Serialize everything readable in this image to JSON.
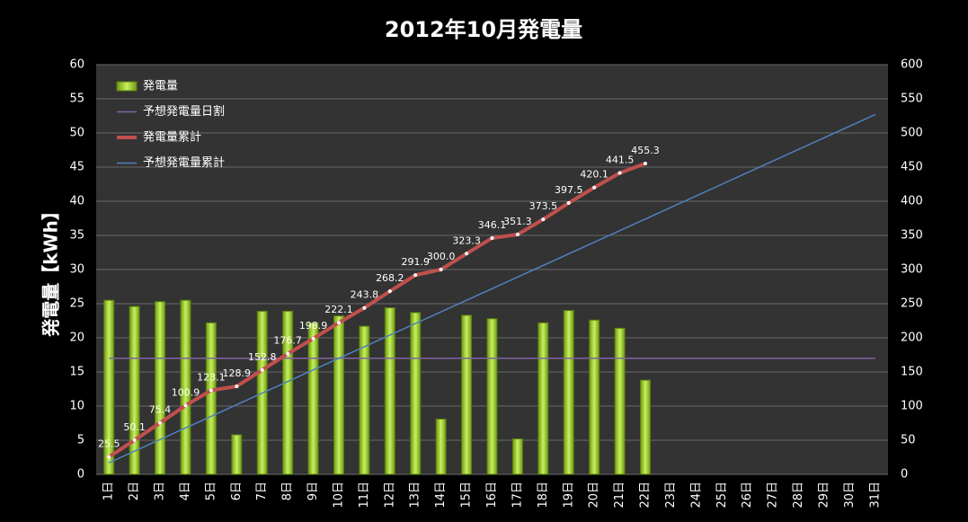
{
  "chart_data": {
    "type": "bar",
    "title": "2012年10月発電量",
    "y_label": "発電量【kWh】",
    "categories": [
      "1日",
      "2日",
      "3日",
      "4日",
      "5日",
      "6日",
      "7日",
      "8日",
      "9日",
      "10日",
      "11日",
      "12日",
      "13日",
      "14日",
      "15日",
      "16日",
      "17日",
      "18日",
      "19日",
      "20日",
      "21日",
      "22日",
      "23日",
      "24日",
      "25日",
      "26日",
      "27日",
      "28日",
      "29日",
      "30日",
      "31日"
    ],
    "series": [
      {
        "name": "発電量",
        "type": "bar",
        "color": "#9bd32a",
        "axis": "y",
        "values": [
          25.5,
          24.6,
          25.3,
          25.5,
          22.2,
          5.8,
          23.9,
          23.9,
          22.2,
          23.2,
          21.7,
          24.4,
          23.7,
          8.1,
          23.3,
          22.8,
          5.2,
          22.2,
          24.0,
          22.6,
          21.4,
          13.8,
          null,
          null,
          null,
          null,
          null,
          null,
          null,
          null,
          null
        ]
      },
      {
        "name": "予想発電量日割",
        "type": "line",
        "color": "#8064a2",
        "axis": "y",
        "values": [
          17,
          17,
          17,
          17,
          17,
          17,
          17,
          17,
          17,
          17,
          17,
          17,
          17,
          17,
          17,
          17,
          17,
          17,
          17,
          17,
          17,
          17,
          17,
          17,
          17,
          17,
          17,
          17,
          17,
          17,
          17
        ]
      },
      {
        "name": "発電量累計",
        "type": "line",
        "color": "#c0504d",
        "axis": "y2",
        "markers": true,
        "values": [
          25.5,
          50.1,
          75.4,
          100.9,
          123.1,
          128.9,
          152.8,
          176.7,
          198.9,
          222.1,
          243.8,
          268.2,
          291.9,
          300.0,
          323.3,
          346.1,
          351.3,
          373.5,
          397.5,
          420.1,
          441.5,
          455.3,
          null,
          null,
          null,
          null,
          null,
          null,
          null,
          null,
          null
        ],
        "value_labels": [
          "25.5",
          "50.1",
          "75.4",
          "100.9",
          "123.1",
          "128.9",
          "152.8",
          "176.7",
          "198.9",
          "222.1",
          "243.8",
          "268.2",
          "291.9",
          "300.0",
          "323.3",
          "346.1",
          "351.3",
          "373.5",
          "397.5",
          "420.1",
          "441.5",
          "455.3",
          null,
          null,
          null,
          null,
          null,
          null,
          null,
          null,
          null
        ]
      },
      {
        "name": "予想発電量累計",
        "type": "line",
        "color": "#4f81bd",
        "axis": "y2",
        "values": [
          17,
          34,
          51,
          68,
          85,
          102,
          119,
          136,
          153,
          170,
          187,
          204,
          221,
          238,
          255,
          272,
          289,
          306,
          323,
          340,
          357,
          374,
          391,
          408,
          425,
          442,
          459,
          476,
          493,
          510,
          527
        ]
      }
    ],
    "ylim": [
      0,
      60
    ],
    "yticks": [
      0,
      5,
      10,
      15,
      20,
      25,
      30,
      35,
      40,
      45,
      50,
      55,
      60
    ],
    "y2lim": [
      0,
      600
    ],
    "y2ticks": [
      0,
      50,
      100,
      150,
      200,
      250,
      300,
      350,
      400,
      450,
      500,
      550,
      600
    ],
    "grid": true,
    "legend": "top-left"
  }
}
